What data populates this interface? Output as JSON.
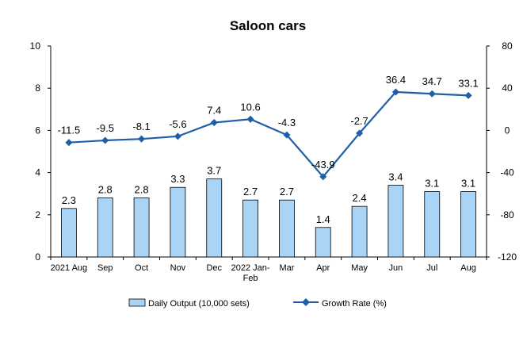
{
  "chart_data": {
    "type": "bar+line",
    "title": "Saloon cars",
    "categories": [
      "2021 Aug",
      "Sep",
      "Oct",
      "Nov",
      "Dec",
      "2022 Jan-Feb",
      "Mar",
      "Apr",
      "May",
      "Jun",
      "Jul",
      "Aug"
    ],
    "category_lines": [
      [
        "2021 Aug"
      ],
      [
        "Sep"
      ],
      [
        "Oct"
      ],
      [
        "Nov"
      ],
      [
        "Dec"
      ],
      [
        "2022 Jan-",
        "Feb"
      ],
      [
        "Mar"
      ],
      [
        "Apr"
      ],
      [
        "May"
      ],
      [
        "Jun"
      ],
      [
        "Jul"
      ],
      [
        "Aug"
      ]
    ],
    "series": [
      {
        "name": "Daily Output (10,000 sets)",
        "type": "bar",
        "axis": "left",
        "color": "#a9d4f5",
        "values": [
          2.3,
          2.8,
          2.8,
          3.3,
          3.7,
          2.7,
          2.7,
          1.4,
          2.4,
          3.4,
          3.1,
          3.1
        ],
        "labels": [
          "2.3",
          "2.8",
          "2.8",
          "3.3",
          "3.7",
          "2.7",
          "2.7",
          "1.4",
          "2.4",
          "3.4",
          "3.1",
          "3.1"
        ]
      },
      {
        "name": "Growth Rate (%)",
        "type": "line",
        "axis": "right",
        "color": "#1f5fa6",
        "values": [
          -11.5,
          -9.5,
          -8.1,
          -5.6,
          7.4,
          10.6,
          -4.3,
          -43.9,
          -2.7,
          36.4,
          34.7,
          33.1
        ],
        "labels": [
          "-11.5",
          "-9.5",
          "-8.1",
          "-5.6",
          "7.4",
          "10.6",
          "-4.3",
          "-43.9",
          "-2.7",
          "36.4",
          "34.7",
          "33.1"
        ]
      }
    ],
    "y_left": {
      "min": 0,
      "max": 10,
      "ticks": [
        0,
        2,
        4,
        6,
        8,
        10
      ]
    },
    "y_right": {
      "min": -120,
      "max": 80,
      "ticks": [
        -120,
        -80,
        -40,
        0,
        40,
        80
      ]
    },
    "grid": false,
    "legend_position": "bottom"
  }
}
